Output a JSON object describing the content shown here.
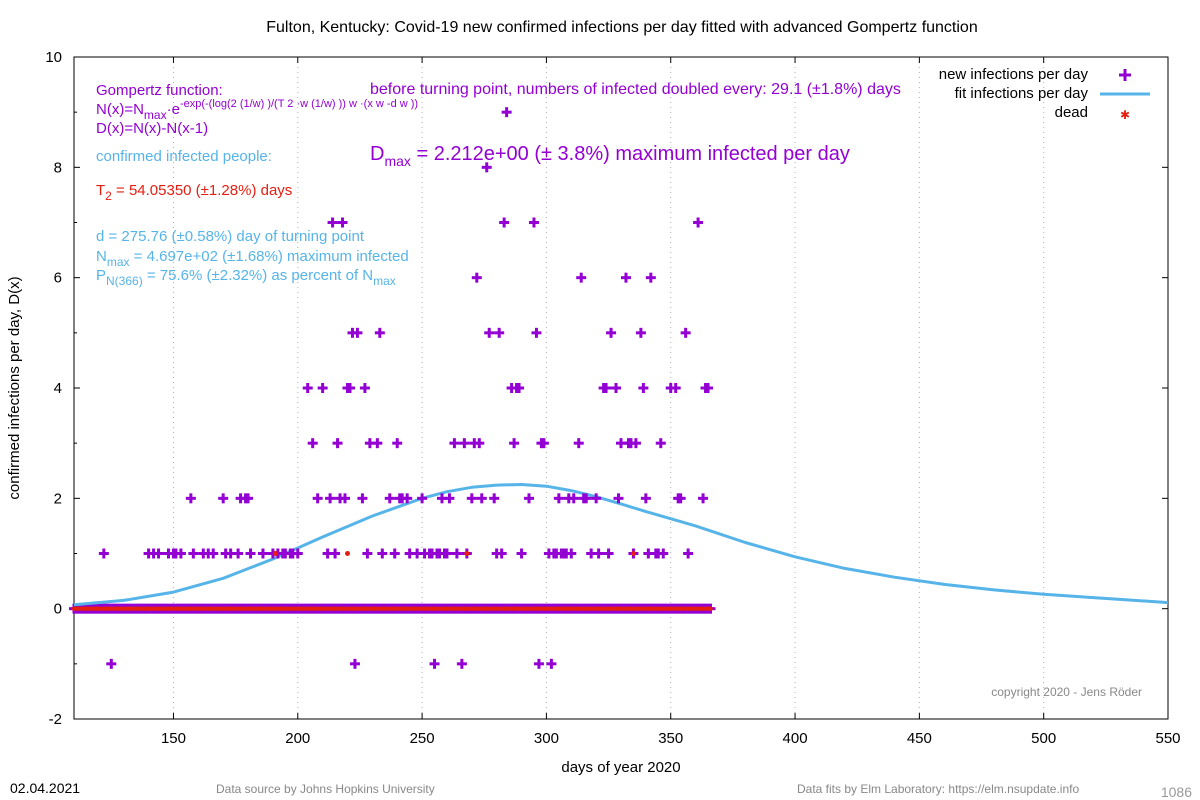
{
  "chart_data": {
    "type": "scatter",
    "title": "Fulton,  Kentucky: Covid-19 new confirmed infections per day fitted with advanced Gompertz function",
    "xlabel": "days of year 2020",
    "ylabel": "confirmed infections per day, D(x)",
    "xlim": [
      110,
      550
    ],
    "ylim": [
      -2,
      10
    ],
    "x_ticks": [
      "150",
      "200",
      "250",
      "300",
      "350",
      "400",
      "450",
      "500",
      "550"
    ],
    "y_ticks": [
      "-2",
      "0",
      "2",
      "4",
      "6",
      "8",
      "10"
    ],
    "grid": "vertical dotted lines at x ticks",
    "legend_position": "top-right",
    "legend": [
      {
        "label": "new infections per day",
        "color": "#9400d3",
        "marker": "plus"
      },
      {
        "label": "fit infections per day",
        "color": "#56b4e9",
        "marker": "line"
      },
      {
        "label": "dead",
        "color": "#e51e10",
        "marker": "star"
      }
    ],
    "annotations": {
      "gompertz_title": "Gompertz function:",
      "formula_n": "N(x)=N",
      "formula_n_sub": "max",
      "formula_n_rest": "·e",
      "formula_exp": "-exp(-(log(2 (1/w) )/(T 2 ·w (1/w) )) w ·(x w -d w ))",
      "formula_d": "D(x)=N(x)-N(x-1)",
      "confirmed_label": "confirmed infected people:",
      "doubling": "before turning point, numbers of infected doubled every: 29.1 (±1.8%) days",
      "dmax_main": "D",
      "dmax_sub": "max",
      "dmax_rest": " = 2.212e+00 (± 3.8%) maximum infected per day",
      "t2_main": "T",
      "t2_sub": "2",
      "t2_rest": " = 54.05350 (±1.28%) days",
      "turning": "d = 275.76 (±0.58%) day of turning point",
      "nmax_main": "N",
      "nmax_sub": "max",
      "nmax_rest": " = 4.697e+02 (±1.68%) maximum infected",
      "p_main": "P",
      "p_sub": "N(366)",
      "p_rest": " = 75.6% (±2.32%) as percent of N",
      "p_tail_sub": "max",
      "copyright": "copyright 2020 - Jens Röder"
    },
    "fit_curve": {
      "name": "fit infections per day",
      "x": [
        110,
        130,
        150,
        170,
        190,
        210,
        230,
        250,
        260,
        270,
        280,
        290,
        300,
        310,
        320,
        330,
        340,
        350,
        360,
        380,
        400,
        420,
        440,
        460,
        480,
        500,
        520,
        550
      ],
      "y": [
        0.07,
        0.15,
        0.3,
        0.55,
        0.9,
        1.3,
        1.68,
        2.0,
        2.12,
        2.2,
        2.24,
        2.25,
        2.22,
        2.14,
        2.03,
        1.9,
        1.76,
        1.63,
        1.5,
        1.2,
        0.94,
        0.73,
        0.57,
        0.44,
        0.34,
        0.26,
        0.2,
        0.11
      ]
    },
    "new_infections_points": [
      [
        122,
        1
      ],
      [
        125,
        -1
      ],
      [
        140,
        1
      ],
      [
        142,
        1
      ],
      [
        144,
        1
      ],
      [
        148,
        1
      ],
      [
        150,
        1
      ],
      [
        151,
        1
      ],
      [
        153,
        1
      ],
      [
        157,
        2
      ],
      [
        158,
        1
      ],
      [
        162,
        1
      ],
      [
        164,
        1
      ],
      [
        166,
        1
      ],
      [
        170,
        2
      ],
      [
        171,
        1
      ],
      [
        173,
        1
      ],
      [
        176,
        1
      ],
      [
        177,
        2
      ],
      [
        179,
        2
      ],
      [
        180,
        2
      ],
      [
        181,
        1
      ],
      [
        186,
        1
      ],
      [
        190,
        1
      ],
      [
        192,
        1
      ],
      [
        194,
        1
      ],
      [
        195,
        1
      ],
      [
        197,
        1
      ],
      [
        198,
        1
      ],
      [
        200,
        1
      ],
      [
        204,
        4
      ],
      [
        206,
        3
      ],
      [
        208,
        2
      ],
      [
        210,
        4
      ],
      [
        212,
        1
      ],
      [
        213,
        2
      ],
      [
        214,
        7
      ],
      [
        215,
        1
      ],
      [
        216,
        3
      ],
      [
        217,
        2
      ],
      [
        218,
        7
      ],
      [
        219,
        2
      ],
      [
        220,
        4
      ],
      [
        221,
        4
      ],
      [
        222,
        5
      ],
      [
        223,
        -1
      ],
      [
        224,
        5
      ],
      [
        226,
        2
      ],
      [
        227,
        4
      ],
      [
        228,
        1
      ],
      [
        229,
        3
      ],
      [
        232,
        3
      ],
      [
        233,
        5
      ],
      [
        234,
        1
      ],
      [
        237,
        2
      ],
      [
        239,
        1
      ],
      [
        240,
        3
      ],
      [
        241,
        2
      ],
      [
        242,
        2
      ],
      [
        244,
        2
      ],
      [
        245,
        1
      ],
      [
        248,
        1
      ],
      [
        250,
        2
      ],
      [
        251,
        1
      ],
      [
        253,
        1
      ],
      [
        254,
        1
      ],
      [
        255,
        -1
      ],
      [
        256,
        1
      ],
      [
        257,
        1
      ],
      [
        258,
        2
      ],
      [
        259,
        1
      ],
      [
        260,
        1
      ],
      [
        261,
        2
      ],
      [
        263,
        3
      ],
      [
        264,
        1
      ],
      [
        266,
        -1
      ],
      [
        267,
        3
      ],
      [
        268,
        1
      ],
      [
        270,
        2
      ],
      [
        271,
        3
      ],
      [
        272,
        6
      ],
      [
        273,
        3
      ],
      [
        274,
        2
      ],
      [
        276,
        8
      ],
      [
        277,
        5
      ],
      [
        279,
        2
      ],
      [
        280,
        1
      ],
      [
        281,
        5
      ],
      [
        282,
        1
      ],
      [
        283,
        7
      ],
      [
        284,
        9
      ],
      [
        286,
        4
      ],
      [
        287,
        3
      ],
      [
        288,
        4
      ],
      [
        289,
        4
      ],
      [
        290,
        1
      ],
      [
        293,
        2
      ],
      [
        295,
        7
      ],
      [
        296,
        5
      ],
      [
        297,
        -1
      ],
      [
        298,
        3
      ],
      [
        299,
        3
      ],
      [
        301,
        1
      ],
      [
        302,
        -1
      ],
      [
        303,
        1
      ],
      [
        304,
        1
      ],
      [
        305,
        2
      ],
      [
        306,
        1
      ],
      [
        307,
        1
      ],
      [
        308,
        1
      ],
      [
        309,
        2
      ],
      [
        310,
        1
      ],
      [
        311,
        2
      ],
      [
        313,
        3
      ],
      [
        314,
        6
      ],
      [
        315,
        2
      ],
      [
        316,
        2
      ],
      [
        318,
        1
      ],
      [
        320,
        2
      ],
      [
        321,
        1
      ],
      [
        323,
        4
      ],
      [
        324,
        4
      ],
      [
        325,
        1
      ],
      [
        326,
        5
      ],
      [
        328,
        4
      ],
      [
        329,
        2
      ],
      [
        330,
        3
      ],
      [
        332,
        6
      ],
      [
        333,
        3
      ],
      [
        334,
        3
      ],
      [
        335,
        1
      ],
      [
        336,
        3
      ],
      [
        338,
        5
      ],
      [
        339,
        4
      ],
      [
        340,
        2
      ],
      [
        341,
        1
      ],
      [
        342,
        6
      ],
      [
        344,
        1
      ],
      [
        345,
        1
      ],
      [
        346,
        3
      ],
      [
        347,
        1
      ],
      [
        350,
        4
      ],
      [
        352,
        4
      ],
      [
        353,
        2
      ],
      [
        354,
        2
      ],
      [
        356,
        5
      ],
      [
        357,
        1
      ],
      [
        361,
        7
      ],
      [
        363,
        2
      ],
      [
        364,
        4
      ],
      [
        365,
        4
      ]
    ],
    "zero_band": {
      "x_start": 110,
      "x_end": 366,
      "y": 0
    },
    "dead_points": [
      [
        191,
        1
      ],
      [
        220,
        1
      ],
      [
        268,
        1
      ],
      [
        335,
        1
      ]
    ]
  },
  "footer": {
    "date": "02.04.2021",
    "source": "Data source by Johns Hopkins University",
    "fits": "Data fits by Elm Laboratory: https://elm.nsupdate.info",
    "page_number": "1086"
  },
  "colors": {
    "infections": "#9400d3",
    "fit": "#56b4e9",
    "dead": "#e51e10",
    "info_text": "#56b4e9",
    "purple_text": "#9400d3",
    "red_text": "#e51e10",
    "grey_text": "#888888"
  }
}
